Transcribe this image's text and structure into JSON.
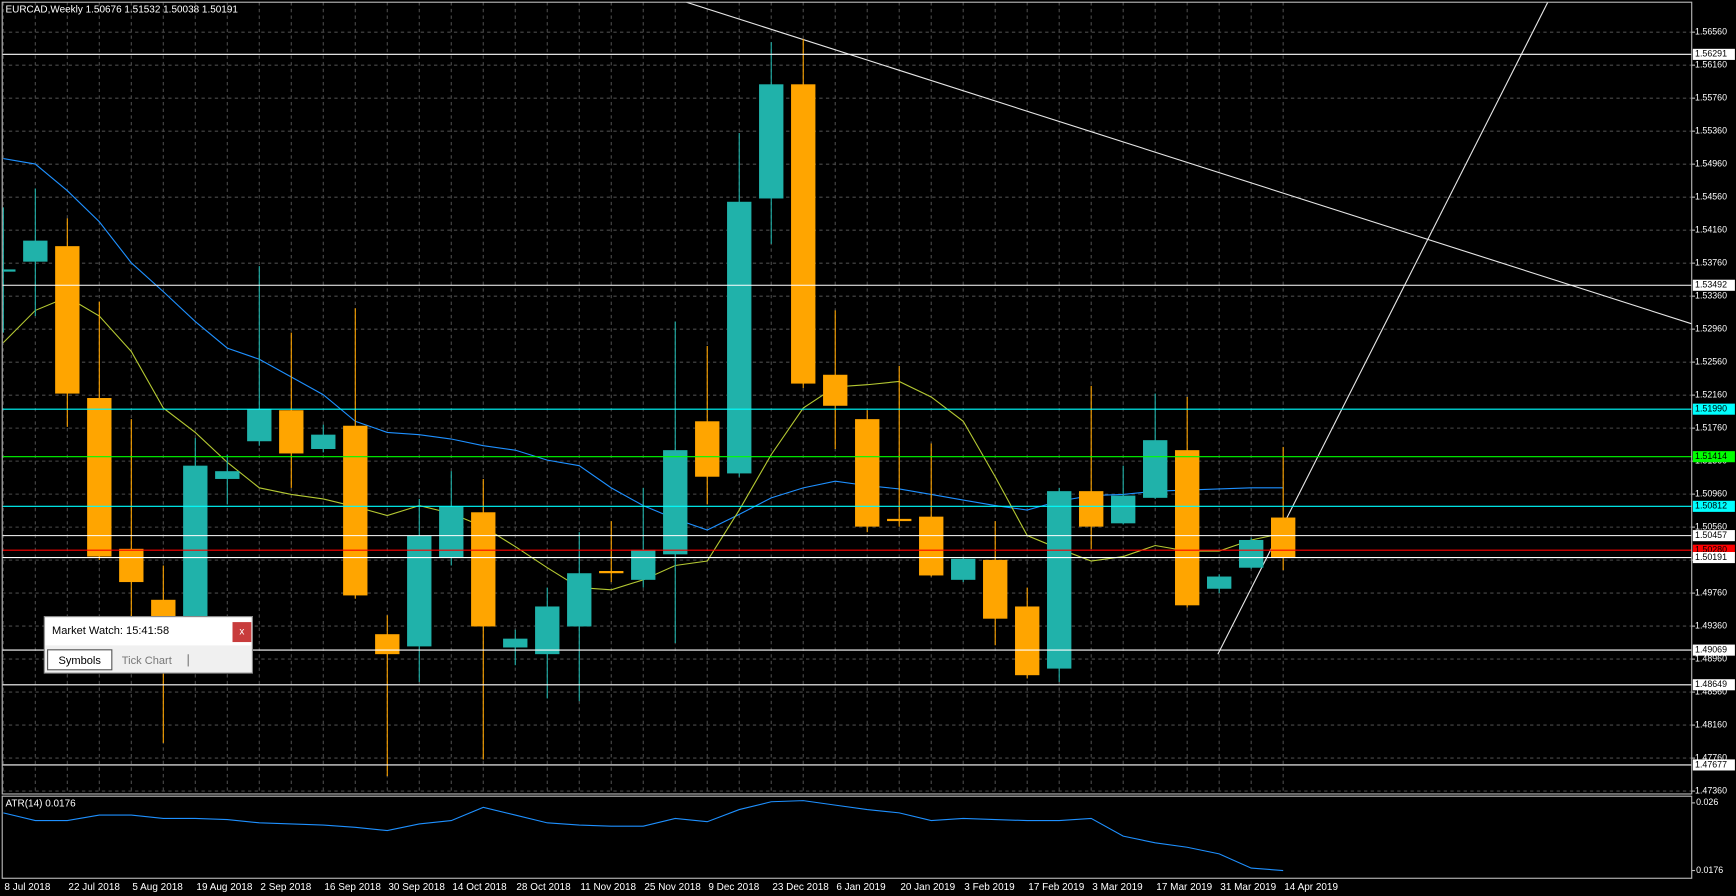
{
  "chart_data": [
    {
      "type": "candlestick",
      "title": "EURCAD,Weekly  1.50676 1.51532 1.50038 1.50191",
      "categories": [
        "8 Jul 2018",
        null,
        "22 Jul 2018",
        null,
        "5 Aug 2018",
        null,
        "19 Aug 2018",
        null,
        "2 Sep 2018",
        null,
        "16 Sep 2018",
        null,
        "30 Sep 2018",
        null,
        "14 Oct 2018",
        null,
        "28 Oct 2018",
        null,
        "11 Nov 2018",
        null,
        "25 Nov 2018",
        null,
        "9 Dec 2018",
        null,
        "23 Dec 2018",
        null,
        "6 Jan 2019",
        null,
        "20 Jan 2019",
        null,
        "3 Feb 2019",
        null,
        "17 Feb 2019",
        null,
        "3 Mar 2019",
        null,
        "17 Mar 2019",
        null,
        "31 Mar 2019",
        null,
        "14 Apr 2019"
      ],
      "open": [
        1.53657,
        1.53778,
        1.53966,
        1.52125,
        1.50297,
        1.49679,
        1.49423,
        1.51144,
        1.51601,
        1.51977,
        1.51507,
        1.51789,
        1.49262,
        1.49114,
        1.50189,
        1.5074,
        1.49101,
        1.4902,
        1.49356,
        1.50028,
        1.49921,
        1.5023,
        1.51843,
        1.51211,
        1.54544,
        1.55928,
        1.52407,
        1.51869,
        1.5066,
        1.50687,
        1.49921,
        1.50163,
        1.49598,
        1.48845,
        1.50996,
        1.50606,
        1.50915,
        1.51493,
        1.49813,
        1.50068,
        1.50676
      ],
      "high": [
        1.54436,
        1.54665,
        1.54302,
        1.53294,
        1.51869,
        1.50095,
        1.51641,
        1.51439,
        1.53724,
        1.52918,
        1.51802,
        1.53213,
        1.49491,
        1.50902,
        1.51238,
        1.51144,
        1.49316,
        1.49827,
        1.50499,
        1.50633,
        1.51036,
        1.53052,
        1.52756,
        1.55337,
        1.56439,
        1.56479,
        1.53187,
        1.51977,
        1.52515,
        1.51574,
        1.50189,
        1.50633,
        1.49827,
        1.51036,
        1.52273,
        1.51305,
        1.52179,
        1.52138,
        1.49988,
        1.50431,
        1.51532
      ],
      "low": [
        1.52918,
        1.53119,
        1.51775,
        1.50163,
        1.49423,
        1.47945,
        1.49356,
        1.50835,
        1.51547,
        1.51036,
        1.51466,
        1.49692,
        1.47542,
        1.48684,
        1.50095,
        1.47743,
        1.48886,
        1.48483,
        1.4845,
        1.49894,
        1.49827,
        1.49155,
        1.50835,
        1.51171,
        1.53993,
        1.52246,
        1.51507,
        1.50499,
        1.50566,
        1.49961,
        1.49894,
        1.49128,
        1.48725,
        1.48684,
        1.50297,
        1.50593,
        1.50902,
        1.49585,
        1.49759,
        1.50055,
        1.50038
      ],
      "close": [
        1.53684,
        1.54033,
        1.52179,
        1.50203,
        1.49894,
        1.4948,
        1.51305,
        1.51238,
        1.5199,
        1.51453,
        1.51681,
        1.49732,
        1.4902,
        1.50458,
        1.50808,
        1.49356,
        1.49208,
        1.49598,
        1.50001,
        1.50001,
        1.50284,
        1.51493,
        1.51171,
        1.54504,
        1.55928,
        1.523,
        1.52031,
        1.50566,
        1.50633,
        1.49974,
        1.50176,
        1.4945,
        1.48765,
        1.50996,
        1.50566,
        1.50942,
        1.51614,
        1.49612,
        1.49961,
        1.50404,
        1.50191
      ],
      "up_color": "#20b2aa",
      "down_color": "#ffa500",
      "lines": [
        {
          "color": "#1e90ff",
          "values": [
            1.55028,
            1.54961,
            1.54638,
            1.54262,
            1.53764,
            1.53415,
            1.53052,
            1.5273,
            1.52595,
            1.5238,
            1.52165,
            1.51843,
            1.51708,
            1.51681,
            1.51628,
            1.51547,
            1.51493,
            1.51372,
            1.51305,
            1.51036,
            1.50821,
            1.5066,
            1.50525,
            1.50714,
            1.50915,
            1.51036,
            1.51117,
            1.51063,
            1.51023,
            1.50956,
            1.50888,
            1.50821,
            1.50767,
            1.50875,
            1.50942,
            1.50956,
            1.50996,
            1.51009,
            1.51023,
            1.51036,
            1.51036
          ]
        },
        {
          "color": "#b4c832",
          "values": [
            1.52797,
            1.53187,
            1.53348,
            1.53119,
            1.52689,
            1.52004,
            1.51708,
            1.51345,
            1.51036,
            1.50956,
            1.50902,
            1.50808,
            1.507,
            1.50821,
            1.50727,
            1.50566,
            1.50324,
            1.50068,
            1.49827,
            1.498,
            1.49921,
            1.50095,
            1.50149,
            1.50767,
            1.51439,
            1.52004,
            1.52259,
            1.52286,
            1.52326,
            1.52138,
            1.51843,
            1.51171,
            1.50458,
            1.50297,
            1.50149,
            1.50203,
            1.50337,
            1.5027,
            1.5027,
            1.50404,
            1.50485
          ]
        }
      ],
      "hlines": [
        {
          "value": 1.56291,
          "label": "1.56291",
          "color": "#ffffff"
        },
        {
          "value": 1.53492,
          "label": "1.53492",
          "color": "#ffffff"
        },
        {
          "value": 1.5199,
          "label": "1.51990",
          "color": "#00ffff"
        },
        {
          "value": 1.51414,
          "label": "1.51414",
          "color": "#00ff00"
        },
        {
          "value": 1.50812,
          "label": "1.50812",
          "color": "#00ffff"
        },
        {
          "value": 1.50457,
          "label": "1.50457",
          "color": "#ffffff"
        },
        {
          "value": 1.5028,
          "label": "1.50280",
          "color": "#ff0000"
        },
        {
          "value": 1.50191,
          "label": "1.50191",
          "color": "#ffffff"
        },
        {
          "value": 1.49069,
          "label": "1.49069",
          "color": "#ffffff"
        },
        {
          "value": 1.48649,
          "label": "1.48649",
          "color": "#ffffff"
        },
        {
          "value": 1.47677,
          "label": "1.47677",
          "color": "#ffffff"
        }
      ],
      "ylim": [
        1.47325,
        1.5695
      ],
      "yticks": [
        {
          "value": 1.5656,
          "label": "1.56560"
        },
        {
          "value": 1.5616,
          "label": "1.56160"
        },
        {
          "value": 1.5576,
          "label": "1.55760"
        },
        {
          "value": 1.5536,
          "label": "1.55360"
        },
        {
          "value": 1.5496,
          "label": "1.54960"
        },
        {
          "value": 1.5456,
          "label": "1.54560"
        },
        {
          "value": 1.5416,
          "label": "1.54160"
        },
        {
          "value": 1.5376,
          "label": "1.53760"
        },
        {
          "value": 1.5336,
          "label": "1.53360"
        },
        {
          "value": 1.5296,
          "label": "1.52960"
        },
        {
          "value": 1.5256,
          "label": "1.52560"
        },
        {
          "value": 1.5216,
          "label": "1.52160"
        },
        {
          "value": 1.5176,
          "label": "1.51760"
        },
        {
          "value": 1.5136,
          "label": "1.51360"
        },
        {
          "value": 1.5096,
          "label": "1.50960"
        },
        {
          "value": 1.5056,
          "label": "1.50560"
        },
        {
          "value": 1.5016,
          "label": "1.50160"
        },
        {
          "value": 1.4976,
          "label": "1.49760"
        },
        {
          "value": 1.4936,
          "label": "1.49360"
        },
        {
          "value": 1.4896,
          "label": "1.48960"
        },
        {
          "value": 1.4856,
          "label": "1.48560"
        },
        {
          "value": 1.4816,
          "label": "1.48160"
        },
        {
          "value": 1.4776,
          "label": "1.47760"
        },
        {
          "value": 1.4736,
          "label": "1.47360"
        }
      ],
      "grid": true
    },
    {
      "type": "line",
      "title": "ATR(14) 0.0176",
      "color": "#1e90ff",
      "values": [
        0.02476,
        0.0238,
        0.0238,
        0.02449,
        0.02449,
        0.02407,
        0.02407,
        0.02393,
        0.02352,
        0.02338,
        0.02325,
        0.02297,
        0.02256,
        0.02338,
        0.0238,
        0.02545,
        0.02449,
        0.02352,
        0.02325,
        0.02311,
        0.02311,
        0.02407,
        0.02366,
        0.02517,
        0.02614,
        0.02628,
        0.02572,
        0.02517,
        0.02476,
        0.0238,
        0.02407,
        0.02393,
        0.0238,
        0.0238,
        0.02407,
        0.02187,
        0.02104,
        0.02049,
        0.01967,
        0.0179,
        0.0176
      ],
      "ylim": [
        0.01664,
        0.02683
      ],
      "yticks": [
        0.026,
        0.0176
      ]
    }
  ],
  "market_watch": {
    "title": "Market Watch: 15:41:58",
    "close": "x",
    "tabs": [
      "Symbols",
      "Tick Chart"
    ]
  }
}
